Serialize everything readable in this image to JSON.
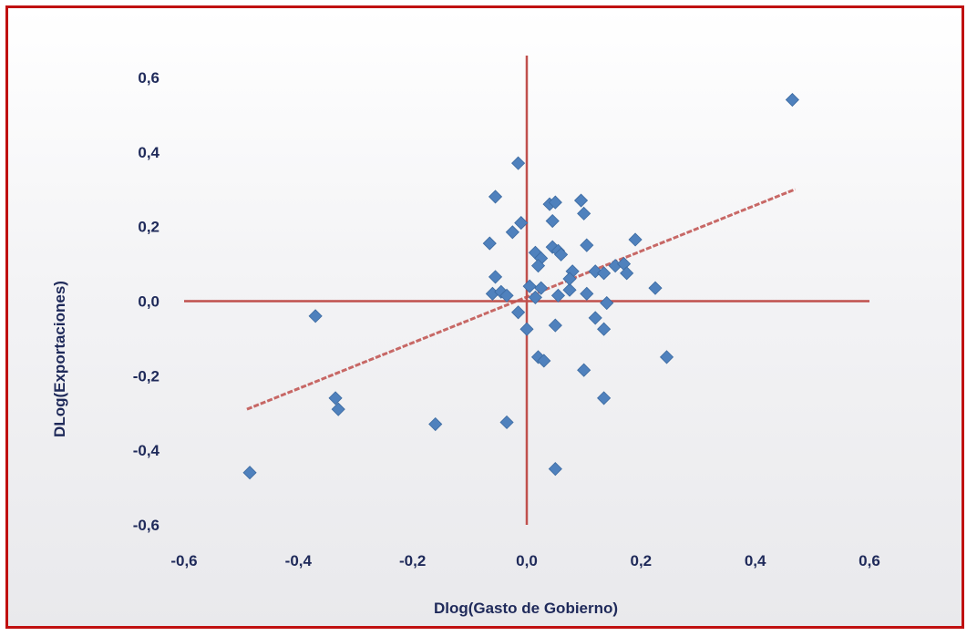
{
  "chart_data": {
    "type": "scatter",
    "title": "",
    "xlabel": "Dlog(Gasto de Gobierno)",
    "ylabel": "DLog(Exportaciones)",
    "xlim": [
      -0.6,
      0.6
    ],
    "ylim": [
      -0.6,
      0.6
    ],
    "xticks": [
      "-0,6",
      "-0,4",
      "-0,2",
      "0,0",
      "0,2",
      "0,4",
      "0,6"
    ],
    "yticks": [
      "0,6",
      "0,4",
      "0,2",
      "0,0",
      "-0,2",
      "-0,4",
      "-0,6"
    ],
    "grid": false,
    "colors": {
      "points": "#4f81bd",
      "axes": "#c0504d",
      "trendline": "#c0504d",
      "frame": "#c01010",
      "text": "#1f2a5a"
    },
    "trendline": {
      "x": [
        -0.49,
        0.47
      ],
      "y": [
        -0.29,
        0.3
      ]
    },
    "series": [
      {
        "values": [
          [
            0.465,
            0.54
          ],
          [
            -0.485,
            -0.46
          ],
          [
            -0.37,
            -0.04
          ],
          [
            -0.335,
            -0.26
          ],
          [
            -0.33,
            -0.29
          ],
          [
            -0.16,
            -0.33
          ],
          [
            -0.035,
            -0.325
          ],
          [
            0.05,
            -0.45
          ],
          [
            -0.015,
            0.37
          ],
          [
            -0.055,
            0.28
          ],
          [
            -0.01,
            0.21
          ],
          [
            -0.025,
            0.185
          ],
          [
            -0.065,
            0.155
          ],
          [
            0.04,
            0.26
          ],
          [
            0.05,
            0.265
          ],
          [
            0.095,
            0.27
          ],
          [
            0.1,
            0.235
          ],
          [
            0.045,
            0.215
          ],
          [
            0.19,
            0.165
          ],
          [
            0.105,
            0.15
          ],
          [
            0.015,
            0.13
          ],
          [
            0.025,
            0.115
          ],
          [
            0.045,
            0.145
          ],
          [
            0.055,
            0.135
          ],
          [
            0.06,
            0.125
          ],
          [
            0.02,
            0.095
          ],
          [
            0.08,
            0.08
          ],
          [
            0.12,
            0.08
          ],
          [
            0.135,
            0.075
          ],
          [
            0.155,
            0.095
          ],
          [
            0.17,
            0.1
          ],
          [
            0.175,
            0.075
          ],
          [
            0.225,
            0.035
          ],
          [
            -0.055,
            0.065
          ],
          [
            -0.06,
            0.02
          ],
          [
            -0.045,
            0.025
          ],
          [
            -0.035,
            0.015
          ],
          [
            0.005,
            0.04
          ],
          [
            0.015,
            0.01
          ],
          [
            0.025,
            0.035
          ],
          [
            0.055,
            0.015
          ],
          [
            0.075,
            0.03
          ],
          [
            0.105,
            0.02
          ],
          [
            0.075,
            0.06
          ],
          [
            -0.015,
            -0.03
          ],
          [
            0.0,
            -0.075
          ],
          [
            0.05,
            -0.065
          ],
          [
            0.14,
            -0.005
          ],
          [
            0.12,
            -0.045
          ],
          [
            0.135,
            -0.075
          ],
          [
            0.02,
            -0.15
          ],
          [
            0.03,
            -0.16
          ],
          [
            0.1,
            -0.185
          ],
          [
            0.245,
            -0.15
          ],
          [
            0.135,
            -0.26
          ]
        ]
      }
    ]
  }
}
